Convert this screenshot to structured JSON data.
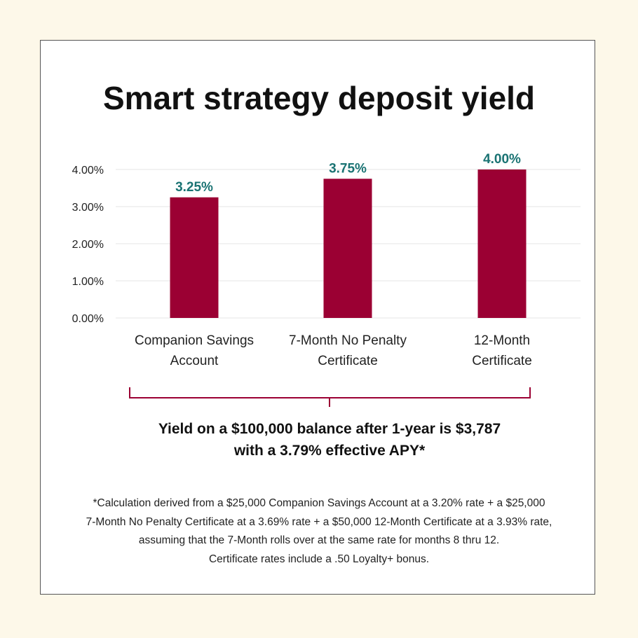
{
  "colors": {
    "background": "#fdf8e9",
    "card": "#ffffff",
    "bar": "#9b0033",
    "value_label": "#1a7373",
    "bracket": "#9b0033",
    "grid": "#e6e6e6"
  },
  "title": "Smart strategy deposit yield",
  "chart_data": {
    "type": "bar",
    "categories": [
      [
        "Companion Savings",
        "Account"
      ],
      [
        "7-Month No Penalty",
        "Certificate"
      ],
      [
        "12-Month",
        "Certificate"
      ]
    ],
    "values": [
      3.25,
      3.75,
      4.0
    ],
    "data_labels": [
      "3.25%",
      "3.75%",
      "4.00%"
    ],
    "y_ticks": [
      0,
      1,
      2,
      3,
      4
    ],
    "y_tick_labels": [
      "0.00%",
      "1.00%",
      "2.00%",
      "3.00%",
      "4.00%"
    ],
    "ylim": [
      0,
      4
    ],
    "grid": true,
    "legend": "none"
  },
  "summary": {
    "line1": "Yield on a $100,000 balance after 1-year is $3,787",
    "line2": "with a 3.79% effective APY*"
  },
  "footnote": {
    "lines": [
      "*Calculation derived from a $25,000 Companion Savings Account at a 3.20% rate + a $25,000",
      "7-Month No Penalty Certificate at a 3.69% rate + a $50,000 12-Month Certificate at a 3.93% rate,",
      "assuming that the 7-Month rolls over at the same rate for months 8 thru 12.",
      "Certificate rates include a .50 Loyalty+ bonus."
    ]
  }
}
